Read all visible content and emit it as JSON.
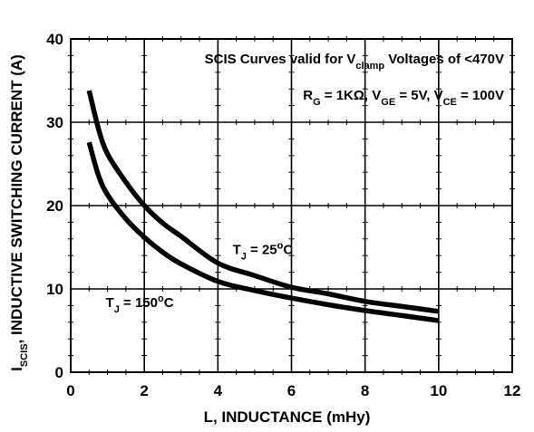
{
  "chart_data": {
    "type": "line",
    "title": "",
    "xlabel": "L, INDUCTANCE (mHy)",
    "ylabel": {
      "main": "I",
      "sub": "SCIS",
      "rest": ", INDUCTIVE SWITCHING CURRENT (A)"
    },
    "xlim": [
      0,
      12
    ],
    "ylim": [
      0,
      40
    ],
    "x_ticks": [
      0,
      2,
      4,
      6,
      8,
      10,
      12
    ],
    "y_ticks": [
      0,
      10,
      20,
      30,
      40
    ],
    "grid": true,
    "annotations": [
      {
        "pre": "SCIS Curves valid for V",
        "sub": "clamp",
        "post": " Voltages of <470V"
      },
      {
        "text": "R_G = 1KΩ, V_GE = 5V, V_CE = 100V",
        "parts": [
          {
            "t": "R",
            "sub": false
          },
          {
            "t": "G",
            "sub": true
          },
          {
            "t": " = 1KΩ, V",
            "sub": false
          },
          {
            "t": "GE",
            "sub": true
          },
          {
            "t": " = 5V, V",
            "sub": false
          },
          {
            "t": "CE",
            "sub": true
          },
          {
            "t": " = 100V",
            "sub": false
          }
        ]
      }
    ],
    "series": [
      {
        "label_pre": "T",
        "label_sub": "J",
        "label_post": " = 25",
        "label_sup": "o",
        "label_end": "C",
        "label_at": [
          4.4,
          14.2
        ],
        "x": [
          0.5,
          0.75,
          1,
          1.5,
          2,
          2.5,
          3,
          4,
          5,
          6,
          7,
          8,
          9,
          10
        ],
        "y": [
          33.8,
          29.3,
          26.2,
          22.8,
          20.0,
          17.9,
          16.3,
          13.1,
          11.6,
          10.2,
          9.4,
          8.5,
          7.9,
          7.3
        ]
      },
      {
        "label_pre": "T",
        "label_sub": "J",
        "label_post": " = 150",
        "label_sup": "o",
        "label_end": "C",
        "label_at": [
          0.95,
          7.8
        ],
        "x": [
          0.5,
          0.75,
          1,
          1.5,
          2,
          2.5,
          3,
          4,
          5,
          6,
          7,
          8,
          9,
          10
        ],
        "y": [
          27.6,
          23.7,
          21.3,
          18.4,
          16.2,
          14.4,
          13.0,
          10.9,
          9.8,
          8.9,
          8.1,
          7.4,
          6.8,
          6.2
        ]
      }
    ]
  }
}
